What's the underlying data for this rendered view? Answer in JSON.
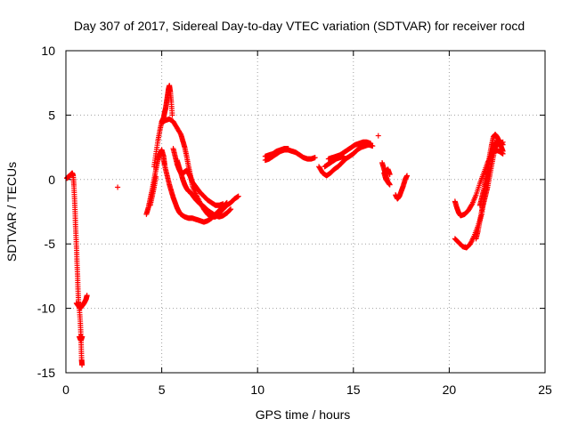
{
  "chart_data": {
    "type": "scatter",
    "title": "Day 307 of 2017, Sidereal Day-to-day VTEC variation (SDTVAR) for receiver rocd",
    "xlabel": "GPS time / hours",
    "ylabel": "SDTVAR / TECUs",
    "xlim": [
      0,
      25
    ],
    "ylim": [
      -15,
      10
    ],
    "xticks": [
      0,
      5,
      10,
      15,
      20,
      25
    ],
    "yticks": [
      -15,
      -10,
      -5,
      0,
      5,
      10
    ],
    "grid": true,
    "marker": "+",
    "marker_color": "#ff0000",
    "series": [
      {
        "name": "SDTVAR",
        "segments": [
          [
            [
              0.05,
              0.1
            ],
            [
              0.12,
              0.2
            ],
            [
              0.2,
              0.3
            ],
            [
              0.27,
              0.4
            ],
            [
              0.33,
              0.5
            ],
            [
              0.38,
              0.3
            ],
            [
              0.42,
              -0.5
            ],
            [
              0.45,
              -1.5
            ],
            [
              0.48,
              -2.5
            ],
            [
              0.5,
              -3.5
            ],
            [
              0.53,
              -4.5
            ],
            [
              0.56,
              -5.5
            ],
            [
              0.58,
              -6.5
            ],
            [
              0.61,
              -7.5
            ],
            [
              0.63,
              -8.5
            ],
            [
              0.66,
              -9.5
            ],
            [
              0.7,
              -10
            ],
            [
              0.75,
              -11
            ],
            [
              0.78,
              -12
            ],
            [
              0.8,
              -13
            ],
            [
              0.82,
              -14
            ],
            [
              0.84,
              -14.4
            ]
          ],
          [
            [
              0.55,
              -9.6
            ],
            [
              0.65,
              -9.8
            ],
            [
              0.75,
              -10.0
            ],
            [
              0.85,
              -9.8
            ],
            [
              0.95,
              -9.6
            ],
            [
              1.05,
              -9.3
            ],
            [
              1.1,
              -9.0
            ]
          ],
          [
            [
              0.7,
              -12.2
            ],
            [
              0.78,
              -12.5
            ],
            [
              0.85,
              -12.2
            ]
          ],
          [
            [
              2.7,
              -0.6
            ]
          ],
          [
            [
              4.2,
              -2.7
            ],
            [
              4.3,
              -2.2
            ],
            [
              4.4,
              -1.5
            ],
            [
              4.5,
              -0.8
            ],
            [
              4.6,
              0
            ],
            [
              4.7,
              0.8
            ],
            [
              4.8,
              1.5
            ],
            [
              4.9,
              2.0
            ],
            [
              5.0,
              2.3
            ],
            [
              5.1,
              1.8
            ],
            [
              5.15,
              1.2
            ]
          ],
          [
            [
              4.4,
              -2.0
            ],
            [
              4.5,
              -1.3
            ],
            [
              4.6,
              -0.6
            ],
            [
              4.7,
              0.2
            ]
          ],
          [
            [
              4.6,
              1.0
            ],
            [
              4.7,
              2.0
            ],
            [
              4.8,
              3.0
            ],
            [
              4.9,
              3.8
            ],
            [
              5.0,
              4.5
            ],
            [
              5.1,
              4.8
            ],
            [
              5.15,
              5.2
            ],
            [
              5.2,
              5.5
            ],
            [
              5.25,
              6.0
            ],
            [
              5.3,
              6.5
            ],
            [
              5.35,
              7.0
            ],
            [
              5.4,
              7.3
            ],
            [
              5.45,
              6.8
            ],
            [
              5.5,
              6.0
            ],
            [
              5.55,
              5.0
            ]
          ],
          [
            [
              5.0,
              4.4
            ],
            [
              5.2,
              4.6
            ],
            [
              5.4,
              4.7
            ],
            [
              5.6,
              4.5
            ],
            [
              5.8,
              4.0
            ],
            [
              6.0,
              3.5
            ],
            [
              6.1,
              3.0
            ],
            [
              6.2,
              2.5
            ],
            [
              6.3,
              1.8
            ],
            [
              6.4,
              1.0
            ],
            [
              6.5,
              0.3
            ],
            [
              6.6,
              -0.5
            ],
            [
              6.8,
              -1.2
            ],
            [
              7.0,
              -1.8
            ],
            [
              7.2,
              -2.3
            ],
            [
              7.4,
              -2.7
            ],
            [
              7.6,
              -2.9
            ],
            [
              7.8,
              -2.9
            ],
            [
              8.0,
              -2.6
            ],
            [
              8.2,
              -2.3
            ],
            [
              8.4,
              -2.0
            ],
            [
              8.6,
              -1.8
            ],
            [
              8.8,
              -1.5
            ],
            [
              9.0,
              -1.3
            ]
          ],
          [
            [
              5.1,
              1.5
            ],
            [
              5.2,
              0.8
            ],
            [
              5.3,
              0.2
            ],
            [
              5.4,
              -0.4
            ],
            [
              5.5,
              -0.9
            ],
            [
              5.6,
              -1.4
            ],
            [
              5.7,
              -1.8
            ],
            [
              5.8,
              -2.2
            ],
            [
              5.9,
              -2.5
            ],
            [
              6.0,
              -2.7
            ],
            [
              6.2,
              -2.9
            ],
            [
              6.4,
              -3.0
            ],
            [
              6.6,
              -3.0
            ],
            [
              6.8,
              -3.1
            ],
            [
              7.0,
              -3.2
            ],
            [
              7.2,
              -3.3
            ],
            [
              7.4,
              -3.2
            ],
            [
              7.6,
              -3.0
            ],
            [
              7.8,
              -2.7
            ],
            [
              8.0,
              -2.4
            ],
            [
              8.2,
              -2.1
            ],
            [
              8.4,
              -1.8
            ]
          ],
          [
            [
              5.6,
              2.4
            ],
            [
              5.7,
              1.8
            ],
            [
              5.8,
              1.2
            ],
            [
              5.9,
              0.8
            ],
            [
              6.0,
              0.5
            ],
            [
              6.1,
              0.5
            ],
            [
              6.2,
              0.6
            ],
            [
              6.3,
              0.7
            ],
            [
              6.4,
              0.5
            ],
            [
              6.5,
              0.2
            ],
            [
              6.6,
              -0.2
            ],
            [
              6.8,
              -0.6
            ],
            [
              7.0,
              -1.0
            ],
            [
              7.2,
              -1.3
            ],
            [
              7.4,
              -1.6
            ],
            [
              7.6,
              -1.8
            ],
            [
              7.8,
              -2.0
            ],
            [
              8.0,
              -2.0
            ],
            [
              8.2,
              -1.9
            ]
          ],
          [
            [
              5.8,
              1.5
            ],
            [
              5.9,
              1.0
            ],
            [
              6.0,
              0.5
            ],
            [
              6.1,
              0.0
            ],
            [
              6.2,
              -0.4
            ],
            [
              6.3,
              -0.7
            ],
            [
              6.4,
              -0.9
            ],
            [
              6.5,
              -1.0
            ],
            [
              6.6,
              -1.2
            ],
            [
              6.7,
              -1.4
            ],
            [
              6.8,
              -1.6
            ],
            [
              7.0,
              -1.9
            ],
            [
              7.2,
              -2.1
            ],
            [
              7.4,
              -2.4
            ],
            [
              7.6,
              -2.6
            ],
            [
              7.8,
              -2.8
            ],
            [
              8.0,
              -2.9
            ],
            [
              8.2,
              -2.8
            ],
            [
              8.4,
              -2.6
            ],
            [
              8.6,
              -2.3
            ]
          ],
          [
            [
              10.4,
              1.5
            ],
            [
              10.6,
              1.6
            ],
            [
              10.8,
              1.8
            ],
            [
              11.0,
              2.0
            ],
            [
              11.2,
              2.2
            ],
            [
              11.4,
              2.3
            ],
            [
              11.6,
              2.3
            ],
            [
              11.8,
              2.2
            ],
            [
              12.0,
              2.1
            ],
            [
              12.2,
              1.9
            ],
            [
              12.4,
              1.7
            ],
            [
              12.6,
              1.6
            ],
            [
              12.8,
              1.6
            ],
            [
              13.0,
              1.7
            ]
          ],
          [
            [
              10.4,
              1.8
            ],
            [
              10.6,
              1.9
            ],
            [
              10.8,
              2.0
            ],
            [
              11.0,
              2.2
            ],
            [
              11.2,
              2.3
            ],
            [
              11.4,
              2.4
            ],
            [
              11.6,
              2.4
            ]
          ],
          [
            [
              13.2,
              1.0
            ],
            [
              13.4,
              0.5
            ],
            [
              13.6,
              0.3
            ],
            [
              13.8,
              0.5
            ],
            [
              14.0,
              0.8
            ],
            [
              14.2,
              1.0
            ],
            [
              14.4,
              1.3
            ],
            [
              14.6,
              1.6
            ],
            [
              14.8,
              1.8
            ],
            [
              15.0,
              2.0
            ],
            [
              15.2,
              2.3
            ],
            [
              15.4,
              2.5
            ],
            [
              15.6,
              2.6
            ],
            [
              15.8,
              2.7
            ],
            [
              16.0,
              2.6
            ]
          ],
          [
            [
              13.7,
              1.6
            ],
            [
              13.9,
              1.7
            ],
            [
              14.1,
              1.8
            ],
            [
              14.3,
              1.9
            ],
            [
              14.5,
              2.1
            ],
            [
              14.7,
              2.3
            ],
            [
              14.9,
              2.5
            ],
            [
              15.1,
              2.7
            ],
            [
              15.3,
              2.8
            ],
            [
              15.5,
              2.9
            ],
            [
              15.7,
              2.9
            ],
            [
              15.9,
              2.8
            ]
          ],
          [
            [
              13.5,
              1.0
            ],
            [
              13.7,
              1.2
            ],
            [
              13.9,
              1.4
            ],
            [
              14.1,
              1.6
            ],
            [
              14.3,
              1.7
            ],
            [
              14.5,
              1.8
            ]
          ],
          [
            [
              16.3,
              3.4
            ]
          ],
          [
            [
              16.5,
              1.3
            ],
            [
              16.6,
              0.8
            ],
            [
              16.7,
              0.3
            ],
            [
              16.8,
              -0.2
            ],
            [
              16.9,
              -0.4
            ],
            [
              16.7,
              0.0
            ],
            [
              16.6,
              0.5
            ],
            [
              16.8,
              0.8
            ],
            [
              16.9,
              0.4
            ]
          ],
          [
            [
              17.2,
              -1.2
            ],
            [
              17.3,
              -1.5
            ],
            [
              17.4,
              -1.3
            ],
            [
              17.5,
              -0.9
            ],
            [
              17.6,
              -0.5
            ],
            [
              17.7,
              0.0
            ],
            [
              17.8,
              0.3
            ]
          ],
          [
            [
              20.3,
              -1.7
            ],
            [
              20.4,
              -2.2
            ],
            [
              20.5,
              -2.6
            ],
            [
              20.6,
              -2.8
            ],
            [
              20.8,
              -2.7
            ],
            [
              21.0,
              -2.4
            ],
            [
              21.2,
              -1.9
            ],
            [
              21.4,
              -1.2
            ],
            [
              21.6,
              -0.3
            ],
            [
              21.8,
              0.5
            ],
            [
              22.0,
              1.3
            ],
            [
              22.2,
              1.9
            ],
            [
              22.4,
              2.3
            ],
            [
              22.6,
              2.2
            ],
            [
              22.8,
              2.0
            ]
          ],
          [
            [
              20.3,
              -4.6
            ],
            [
              20.5,
              -4.9
            ],
            [
              20.7,
              -5.2
            ],
            [
              20.9,
              -5.3
            ],
            [
              21.1,
              -5.0
            ],
            [
              21.3,
              -4.4
            ],
            [
              21.5,
              -3.6
            ],
            [
              21.7,
              -2.7
            ],
            [
              21.8,
              -1.5
            ],
            [
              21.9,
              -0.3
            ],
            [
              22.0,
              0.8
            ],
            [
              22.1,
              1.8
            ],
            [
              22.2,
              2.6
            ],
            [
              22.3,
              3.3
            ],
            [
              22.4,
              3.5
            ],
            [
              22.5,
              3.3
            ],
            [
              22.6,
              3.0
            ],
            [
              22.7,
              2.8
            ],
            [
              22.8,
              2.7
            ]
          ],
          [
            [
              21.6,
              -2.0
            ],
            [
              21.7,
              -1.4
            ],
            [
              21.8,
              -0.8
            ],
            [
              21.9,
              0.0
            ],
            [
              22.0,
              0.8
            ],
            [
              22.1,
              1.4
            ],
            [
              22.2,
              2.0
            ],
            [
              22.3,
              2.6
            ],
            [
              22.5,
              3.0
            ],
            [
              22.7,
              2.6
            ],
            [
              22.8,
              2.2
            ]
          ],
          [
            [
              21.4,
              -4.6
            ],
            [
              21.5,
              -4.0
            ],
            [
              21.6,
              -3.2
            ],
            [
              21.7,
              -2.4
            ],
            [
              21.8,
              -1.8
            ],
            [
              21.9,
              -1.2
            ],
            [
              22.0,
              -0.6
            ],
            [
              22.1,
              0.2
            ],
            [
              22.2,
              1.0
            ],
            [
              22.3,
              1.8
            ],
            [
              22.4,
              2.5
            ],
            [
              22.6,
              2.8
            ],
            [
              22.8,
              2.9
            ]
          ]
        ]
      }
    ]
  }
}
